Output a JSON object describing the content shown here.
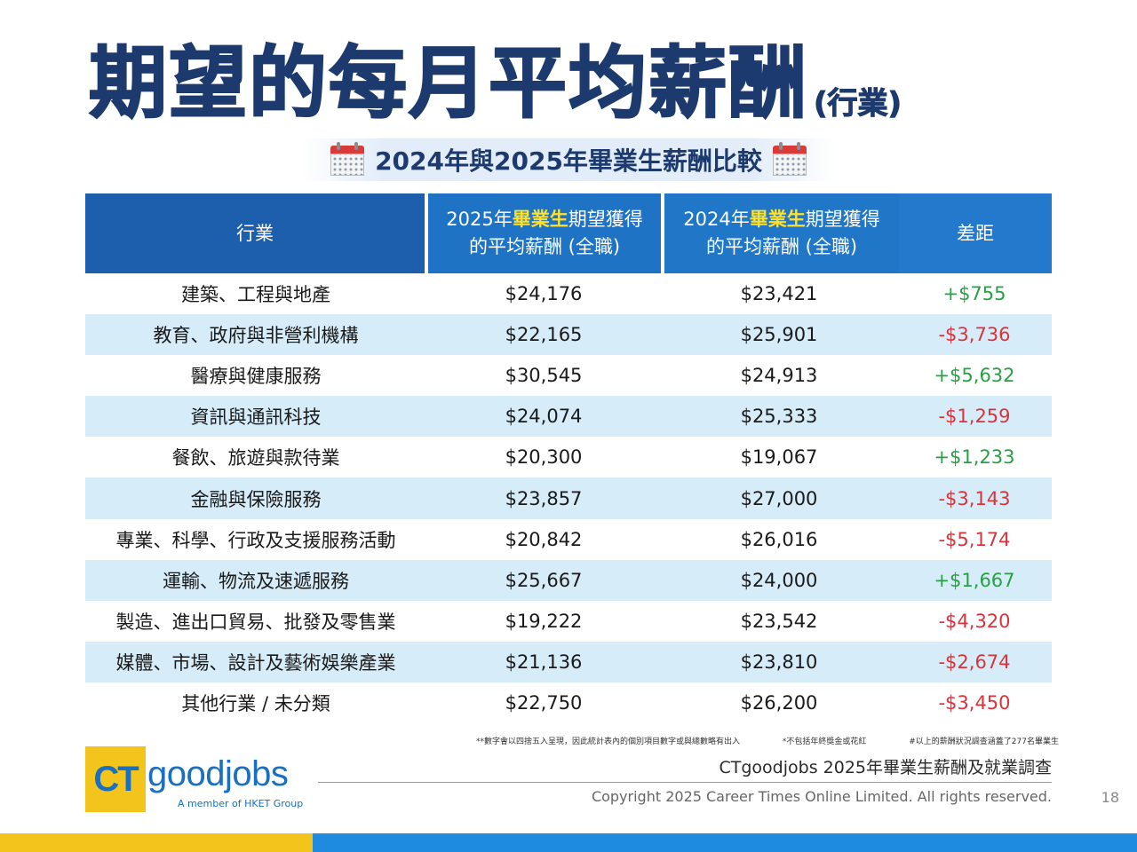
{
  "header": {
    "title": "期望的每月平均薪酬",
    "title_suffix": "(行業)",
    "subtitle": "2024年與2025年畢業生薪酬比較",
    "icon": "calendar-icon"
  },
  "table": {
    "headers": {
      "industry": "行業",
      "col2025_pre": "2025年",
      "col2025_hl": "畢業生",
      "col2025_post": "期望獲得",
      "col2025_line2": "的平均薪酬 (全職)",
      "col2024_pre": "2024年",
      "col2024_hl": "畢業生",
      "col2024_post": "期望獲得",
      "col2024_line2": "的平均薪酬 (全職)",
      "diff": "差距"
    },
    "rows": [
      {
        "industry": "建築、工程與地產",
        "y2025": "$24,176",
        "y2024": "$23,421",
        "diff": "+$755"
      },
      {
        "industry": "教育、政府與非營利機構",
        "y2025": "$22,165",
        "y2024": "$25,901",
        "diff": "-$3,736"
      },
      {
        "industry": "醫療與健康服務",
        "y2025": "$30,545",
        "y2024": "$24,913",
        "diff": "+$5,632"
      },
      {
        "industry": "資訊與通訊科技",
        "y2025": "$24,074",
        "y2024": "$25,333",
        "diff": "-$1,259"
      },
      {
        "industry": "餐飲、旅遊與款待業",
        "y2025": "$20,300",
        "y2024": "$19,067",
        "diff": "+$1,233"
      },
      {
        "industry": "金融與保險服務",
        "y2025": "$23,857",
        "y2024": "$27,000",
        "diff": "-$3,143"
      },
      {
        "industry": "專業、科學、行政及支援服務活動",
        "y2025": "$20,842",
        "y2024": "$26,016",
        "diff": "-$5,174"
      },
      {
        "industry": "運輸、物流及速遞服務",
        "y2025": "$25,667",
        "y2024": "$24,000",
        "diff": "+$1,667"
      },
      {
        "industry": "製造、進出口貿易、批發及零售業",
        "y2025": "$19,222",
        "y2024": "$23,542",
        "diff": "-$4,320"
      },
      {
        "industry": "媒體、市場、設計及藝術娛樂產業",
        "y2025": "$21,136",
        "y2024": "$23,810",
        "diff": "-$2,674"
      },
      {
        "industry": "其他行業 / 未分類",
        "y2025": "$22,750",
        "y2024": "$26,200",
        "diff": "-$3,450"
      }
    ]
  },
  "footnotes": {
    "note1": "**數字會以四捨五入呈現，因此統計表內的個別項目數字或與總數略有出入",
    "note2": "*不包括年終獎金或花紅",
    "note3": "#以上的薪酬狀況調查涵蓋了277名畢業生"
  },
  "footer": {
    "survey_title": "CTgoodjobs 2025年畢業生薪酬及就業調查",
    "copyright": "Copyright 2025 Career Times Online Limited. All rights reserved.",
    "page_number": "18",
    "logo_ct": "CT",
    "logo_word": "goodjobs",
    "logo_tagline": "A member of HKET Group"
  },
  "colors": {
    "title": "#1c3a6e",
    "header_bg": "#1f73c4",
    "highlight": "#ffe02a",
    "row_shade": "#d6ecf8",
    "positive": "#27a043",
    "negative": "#d8343c",
    "brand_yellow": "#f3c41b",
    "brand_blue": "#1f8be0"
  }
}
